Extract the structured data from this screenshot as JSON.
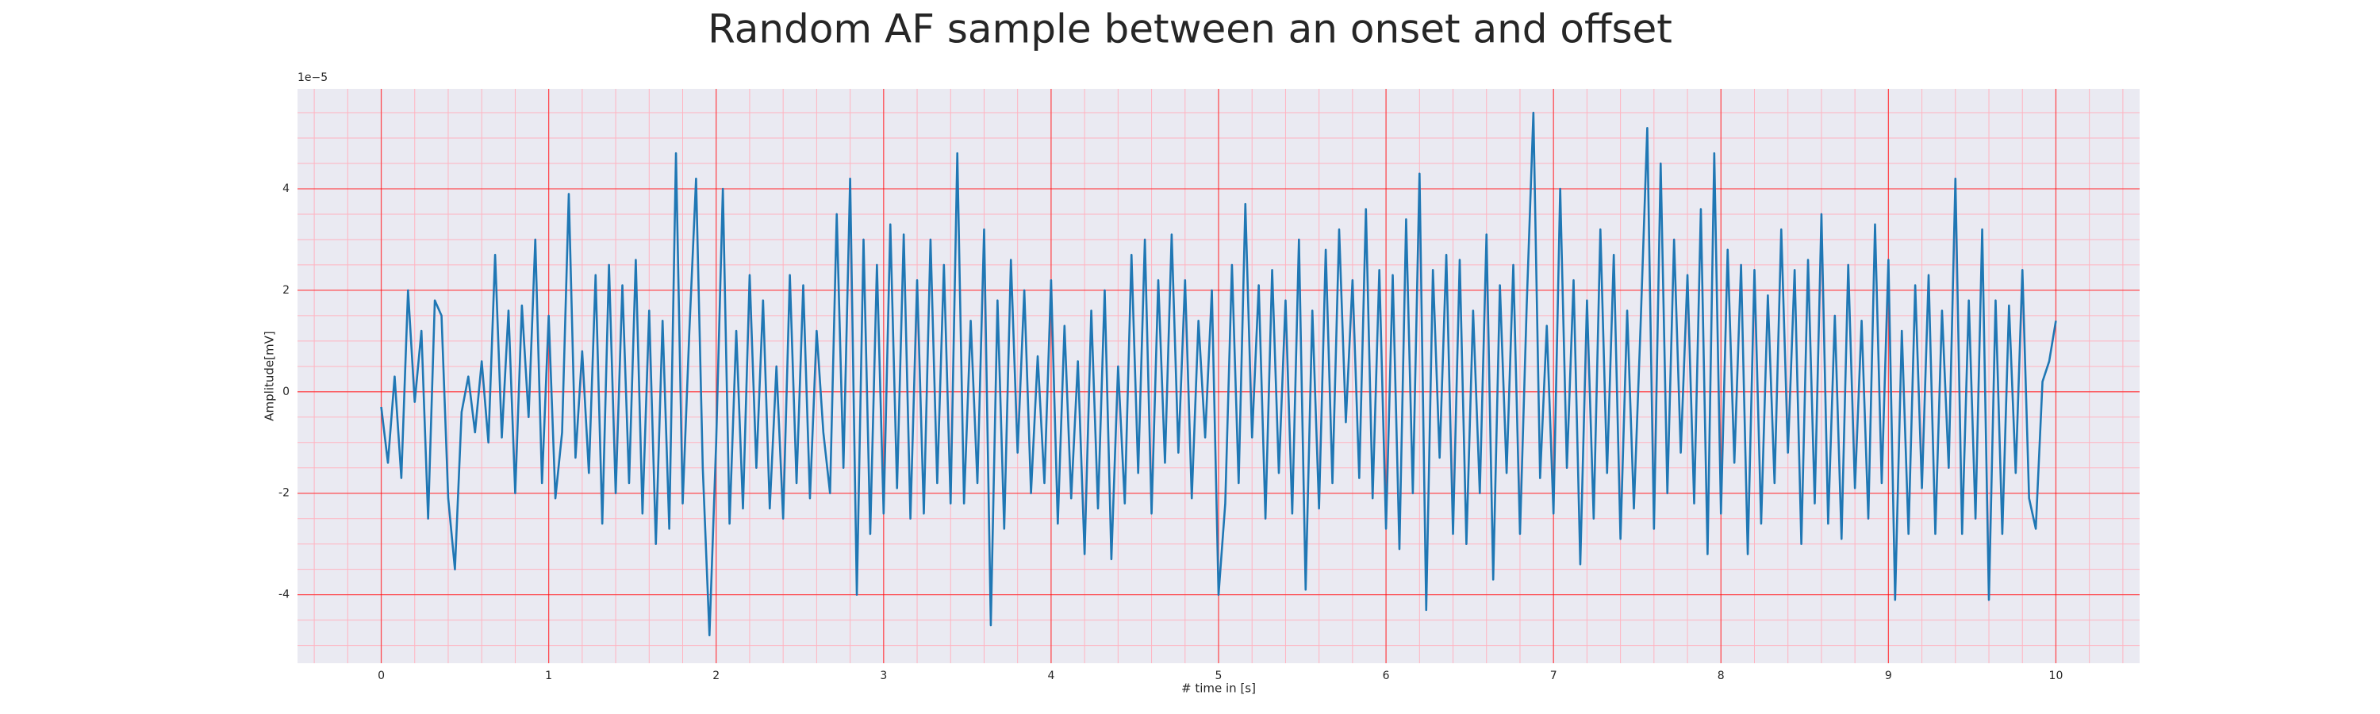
{
  "chart_data": {
    "type": "line",
    "title": "Random AF sample between an onset and offset",
    "xlabel": "# time in [s]",
    "ylabel": "Amplitude[mV]",
    "y_offset_label": "1e−5",
    "xlim": [
      -0.5,
      10.5
    ],
    "ylim": [
      -5.35,
      5.97
    ],
    "xticks": [
      0,
      1,
      2,
      3,
      4,
      5,
      6,
      7,
      8,
      9,
      10
    ],
    "yticks": [
      -4,
      -2,
      0,
      2,
      4
    ],
    "grid": true,
    "grid_color": "#ff0000",
    "minor_grid": true,
    "minor_grid_color": "#ffb3c0",
    "xminor_step": 0.2,
    "yminor_step": 0.5,
    "background": "#eaeaf2",
    "x": [
      0,
      0.04,
      0.08,
      0.12,
      0.16,
      0.2,
      0.24,
      0.28,
      0.32,
      0.36,
      0.4,
      0.44,
      0.48,
      0.52,
      0.56,
      0.6,
      0.64,
      0.68,
      0.72,
      0.76,
      0.8,
      0.84,
      0.88,
      0.92,
      0.96,
      1,
      1.04,
      1.08,
      1.12,
      1.16,
      1.2,
      1.24,
      1.28,
      1.32,
      1.36,
      1.4,
      1.44,
      1.48,
      1.52,
      1.56,
      1.6,
      1.64,
      1.68,
      1.72,
      1.76,
      1.8,
      1.84,
      1.88,
      1.92,
      1.96,
      2,
      2.04,
      2.08,
      2.12,
      2.16,
      2.2,
      2.24,
      2.28,
      2.32,
      2.36,
      2.4,
      2.44,
      2.48,
      2.52,
      2.56,
      2.6,
      2.64,
      2.68,
      2.72,
      2.76,
      2.8,
      2.84,
      2.88,
      2.92,
      2.96,
      3,
      3.04,
      3.08,
      3.12,
      3.16,
      3.2,
      3.24,
      3.28,
      3.32,
      3.36,
      3.4,
      3.44,
      3.48,
      3.52,
      3.56,
      3.6,
      3.64,
      3.68,
      3.72,
      3.76,
      3.8,
      3.84,
      3.88,
      3.92,
      3.96,
      4,
      4.04,
      4.08,
      4.12,
      4.16,
      4.2,
      4.24,
      4.28,
      4.32,
      4.36,
      4.4,
      4.44,
      4.48,
      4.52,
      4.56,
      4.6,
      4.64,
      4.68,
      4.72,
      4.76,
      4.8,
      4.84,
      4.88,
      4.92,
      4.96,
      5,
      5.04,
      5.08,
      5.12,
      5.16,
      5.2,
      5.24,
      5.28,
      5.32,
      5.36,
      5.4,
      5.44,
      5.48,
      5.52,
      5.56,
      5.6,
      5.64,
      5.68,
      5.72,
      5.76,
      5.8,
      5.84,
      5.88,
      5.92,
      5.96,
      6,
      6.04,
      6.08,
      6.12,
      6.16,
      6.2,
      6.24,
      6.28,
      6.32,
      6.36,
      6.4,
      6.44,
      6.48,
      6.52,
      6.56,
      6.6,
      6.64,
      6.68,
      6.72,
      6.76,
      6.8,
      6.84,
      6.88,
      6.92,
      6.96,
      7,
      7.04,
      7.08,
      7.12,
      7.16,
      7.2,
      7.24,
      7.28,
      7.32,
      7.36,
      7.4,
      7.44,
      7.48,
      7.52,
      7.56,
      7.6,
      7.64,
      7.68,
      7.72,
      7.76,
      7.8,
      7.84,
      7.88,
      7.92,
      7.96,
      8,
      8.04,
      8.08,
      8.12,
      8.16,
      8.2,
      8.24,
      8.28,
      8.32,
      8.36,
      8.4,
      8.44,
      8.48,
      8.52,
      8.56,
      8.6,
      8.64,
      8.68,
      8.72,
      8.76,
      8.8,
      8.84,
      8.88,
      8.92,
      8.96,
      9,
      9.04,
      9.08,
      9.12,
      9.16,
      9.2,
      9.24,
      9.28,
      9.32,
      9.36,
      9.4,
      9.44,
      9.48,
      9.52,
      9.56,
      9.6,
      9.64,
      9.68,
      9.72,
      9.76,
      9.8,
      9.84,
      9.88,
      9.92,
      9.96,
      10
    ],
    "series": [
      {
        "color": "#1f77b4",
        "values": [
          -0.3,
          -1.4,
          0.3,
          -1.7,
          2.0,
          -0.2,
          1.2,
          -2.5,
          1.8,
          1.5,
          -2.1,
          -3.5,
          -0.4,
          0.3,
          -0.8,
          0.6,
          -1.0,
          2.7,
          -0.9,
          1.6,
          -2.0,
          1.7,
          -0.5,
          3.0,
          -1.8,
          1.5,
          -2.1,
          -0.8,
          3.9,
          -1.3,
          0.8,
          -1.6,
          2.3,
          -2.6,
          2.5,
          -2.0,
          2.1,
          -1.8,
          2.6,
          -2.4,
          1.6,
          -3.0,
          1.4,
          -2.7,
          4.7,
          -2.2,
          1.2,
          4.2,
          -1.5,
          -4.8,
          -1.0,
          4.0,
          -2.6,
          1.2,
          -2.3,
          2.3,
          -1.5,
          1.8,
          -2.3,
          0.5,
          -2.5,
          2.3,
          -1.8,
          2.1,
          -2.1,
          1.2,
          -0.8,
          -2.0,
          3.5,
          -1.5,
          4.2,
          -4.0,
          3.0,
          -2.8,
          2.5,
          -2.4,
          3.3,
          -1.9,
          3.1,
          -2.5,
          2.2,
          -2.4,
          3.0,
          -1.8,
          2.5,
          -2.2,
          4.7,
          -2.2,
          1.4,
          -1.8,
          3.2,
          -4.6,
          1.8,
          -2.7,
          2.6,
          -1.2,
          2.0,
          -2.0,
          0.7,
          -1.8,
          2.2,
          -2.6,
          1.3,
          -2.1,
          0.6,
          -3.2,
          1.6,
          -2.3,
          2.0,
          -3.3,
          0.5,
          -2.2,
          2.7,
          -1.6,
          3.0,
          -2.4,
          2.2,
          -1.4,
          3.1,
          -1.2,
          2.2,
          -2.1,
          1.4,
          -0.9,
          2.0,
          -4.0,
          -2.2,
          2.5,
          -1.8,
          3.7,
          -0.9,
          2.1,
          -2.5,
          2.4,
          -1.6,
          1.8,
          -2.4,
          3.0,
          -3.9,
          1.6,
          -2.3,
          2.8,
          -1.8,
          3.2,
          -0.6,
          2.2,
          -1.7,
          3.6,
          -2.1,
          2.4,
          -2.7,
          2.3,
          -3.1,
          3.4,
          -2.0,
          4.3,
          -4.3,
          2.4,
          -1.3,
          2.7,
          -2.8,
          2.6,
          -3.0,
          1.6,
          -2.0,
          3.1,
          -3.7,
          2.1,
          -1.6,
          2.5,
          -2.8,
          1.7,
          5.5,
          -1.7,
          1.3,
          -2.4,
          4.0,
          -1.5,
          2.2,
          -3.4,
          1.8,
          -2.5,
          3.2,
          -1.6,
          2.7,
          -2.9,
          1.6,
          -2.3,
          1.3,
          5.2,
          -2.7,
          4.5,
          -2.0,
          3.0,
          -1.2,
          2.3,
          -2.2,
          3.6,
          -3.2,
          4.7,
          -2.4,
          2.8,
          -1.4,
          2.5,
          -3.2,
          2.4,
          -2.6,
          1.9,
          -1.8,
          3.2,
          -1.2,
          2.4,
          -3.0,
          2.6,
          -2.2,
          3.5,
          -2.6,
          1.5,
          -2.9,
          2.5,
          -1.9,
          1.4,
          -2.5,
          3.3,
          -1.8,
          2.6,
          -4.1,
          1.2,
          -2.8,
          2.1,
          -1.9,
          2.3,
          -2.8,
          1.6,
          -1.5,
          4.2,
          -2.8,
          1.8,
          -2.5,
          3.2,
          -4.1,
          1.8,
          -2.8,
          1.7,
          -1.6,
          2.4,
          -2.1,
          -2.7,
          0.2,
          0.6,
          1.4
        ]
      }
    ]
  }
}
